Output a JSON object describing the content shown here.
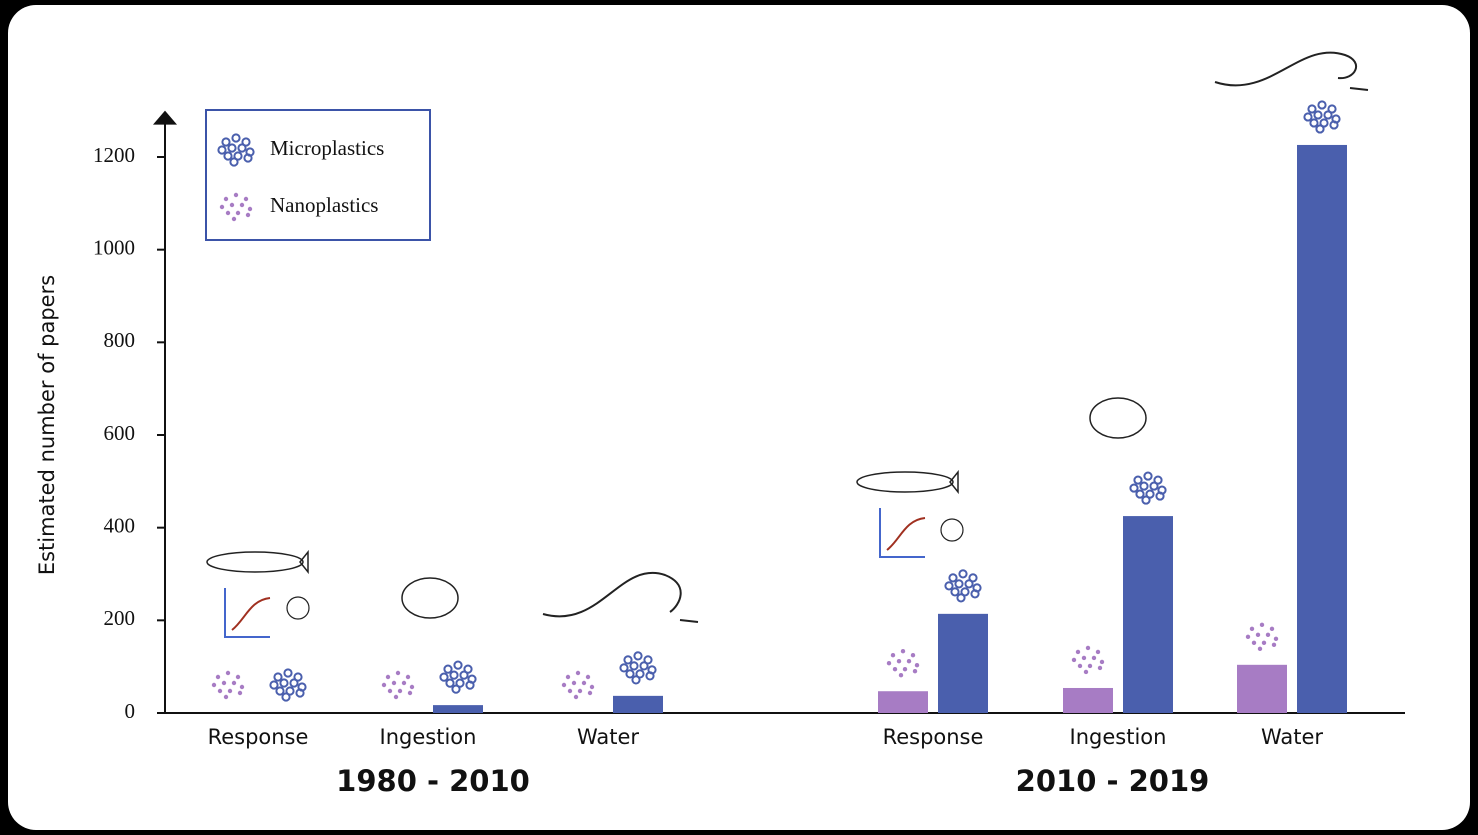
{
  "chart_data": {
    "type": "bar",
    "y_label": "Estimated number of papers",
    "categories": [
      "Response",
      "Ingestion",
      "Water",
      "Response",
      "Ingestion",
      "Water"
    ],
    "groups": [
      "1980 - 2010",
      "2010 - 2019"
    ],
    "series": [
      {
        "name": "Nanoplastics",
        "color": "#a77cc4",
        "values": [
          0,
          0,
          0,
          47,
          54,
          104
        ]
      },
      {
        "name": "Microplastics",
        "color": "#4a5fad",
        "values": [
          0,
          17,
          37,
          214,
          425,
          1226
        ]
      }
    ],
    "ylim": [
      0,
      1300
    ],
    "yticks": [
      0,
      200,
      400,
      600,
      800,
      1000,
      1200
    ]
  }
}
